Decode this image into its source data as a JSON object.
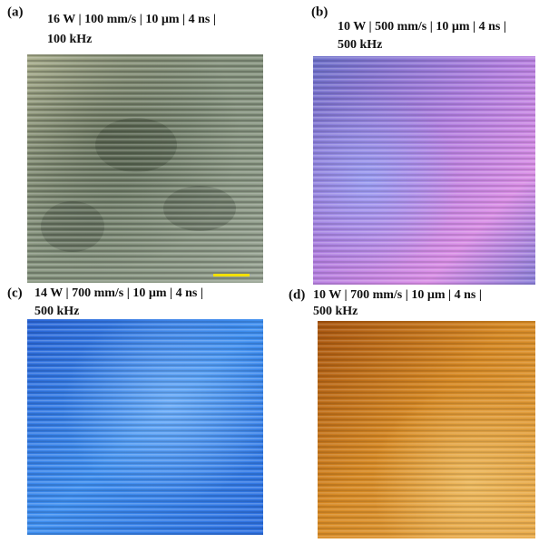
{
  "panels": [
    {
      "label": "(a)",
      "title_lines": [
        "16 W | 100 mm/s | 10 µm | 4 ns |",
        "100 kHz"
      ]
    },
    {
      "label": "(b)",
      "title_lines": [
        "10 W | 500 mm/s | 10 µm | 4 ns |",
        "500 kHz"
      ]
    },
    {
      "label": "(c)",
      "title_lines": [
        "14 W | 700 mm/s | 10 µm | 4 ns |",
        "500 kHz"
      ]
    },
    {
      "label": "(d)",
      "title_lines": [
        "10 W | 700 mm/s | 10 µm | 4 ns |",
        "500 kHz"
      ]
    }
  ]
}
